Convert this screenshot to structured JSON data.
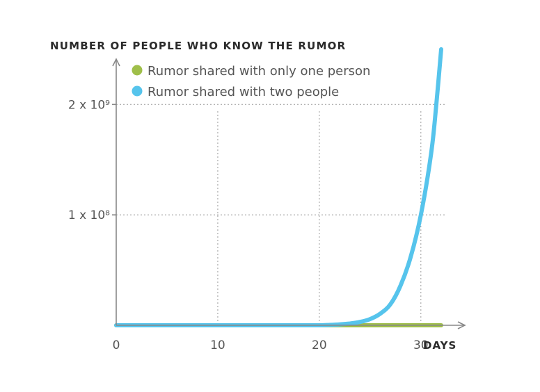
{
  "chart_data": {
    "type": "line",
    "ylabel": "NUMBER OF PEOPLE WHO KNOW THE RUMOR",
    "xlabel": "DAYS",
    "x_ticks": [
      {
        "value": 0,
        "label": "0"
      },
      {
        "value": 10,
        "label": "10"
      },
      {
        "value": 20,
        "label": "20"
      },
      {
        "value": 30,
        "label": "30"
      }
    ],
    "y_ticks": [
      {
        "value": 1,
        "label": "1 x 10⁸"
      },
      {
        "value": 2,
        "label": "2 x 10⁹"
      }
    ],
    "xlim": [
      0,
      32
    ],
    "ylim": [
      0,
      2.6
    ],
    "grid": true,
    "legend_position": "top-left",
    "series": [
      {
        "name": "Rumor shared with only one person",
        "color": "#9fbf4a",
        "x": [
          0,
          32
        ],
        "y": [
          0,
          0
        ]
      },
      {
        "name": "Rumor shared with two people",
        "color": "#56c4ec",
        "x": [
          0,
          5,
          10,
          15,
          18,
          20,
          21,
          22,
          23,
          24,
          25,
          26,
          27,
          28,
          29,
          30,
          31,
          31.5,
          32
        ],
        "y": [
          0,
          0,
          0,
          0,
          0,
          0,
          0.003,
          0.008,
          0.016,
          0.03,
          0.056,
          0.105,
          0.19,
          0.36,
          0.62,
          1.0,
          1.55,
          1.98,
          2.5
        ]
      }
    ]
  }
}
